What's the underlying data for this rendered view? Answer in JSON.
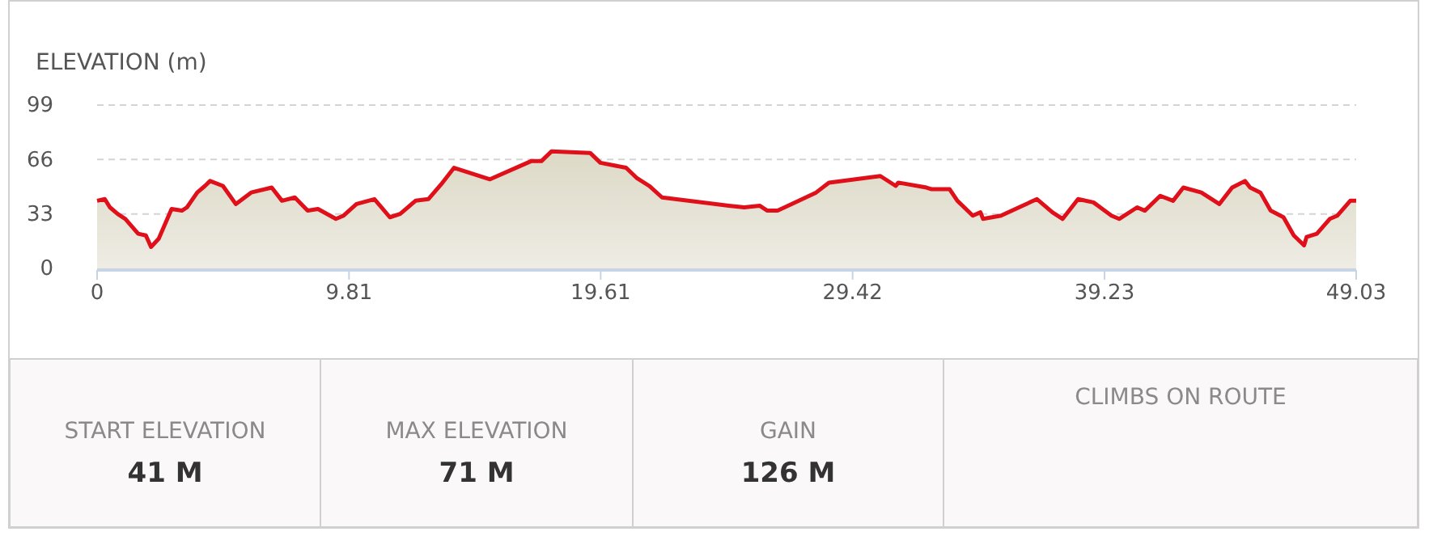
{
  "chart_data": {
    "type": "area",
    "ylabel": "ELEVATION (m)",
    "x": [
      0,
      0.3,
      0.5,
      0.8,
      1.1,
      1.6,
      1.9,
      2.1,
      2.4,
      2.9,
      3.3,
      3.5,
      3.9,
      4.2,
      4.4,
      4.9,
      5.4,
      6.0,
      6.8,
      7.2,
      7.7,
      8.2,
      8.6,
      9.3,
      9.6,
      10.1,
      10.8,
      11.4,
      11.8,
      12.4,
      12.9,
      13.4,
      13.9,
      15.3,
      16.9,
      17.3,
      17.7,
      19.2,
      19.6,
      20.6,
      21.0,
      21.5,
      22.0,
      24.6,
      25.2,
      25.8,
      26.1,
      26.5,
      28.0,
      28.5,
      30.5,
      31.1,
      31.2,
      32.3,
      32.5,
      33.2,
      33.5,
      34.1,
      34.4,
      34.5,
      35.2,
      36.6,
      37.2,
      37.6,
      38.2,
      38.8,
      39.5,
      39.8,
      40.5,
      40.8,
      41.4,
      41.9,
      42.3,
      43.0,
      43.7,
      44.2,
      44.7,
      44.9,
      45.3,
      45.7,
      46.2,
      46.6,
      47.0,
      47.1,
      47.5,
      48.0,
      48.3,
      48.8,
      49.03
    ],
    "series": [
      {
        "color": "#e0101b",
        "values": [
          41,
          42,
          37,
          33,
          30,
          21,
          20,
          13,
          18,
          36,
          35,
          37,
          46,
          50,
          53,
          50,
          39,
          46,
          49,
          41,
          43,
          35,
          36,
          30,
          32,
          39,
          42,
          31,
          33,
          41,
          42,
          51,
          61,
          54,
          65,
          65,
          71,
          70,
          64,
          61,
          55,
          50,
          43,
          38,
          37,
          38,
          35,
          35,
          46,
          52,
          56,
          50,
          52,
          49,
          48,
          48,
          41,
          32,
          34,
          30,
          32,
          42,
          34,
          30,
          42,
          40,
          32,
          30,
          37,
          35,
          44,
          41,
          49,
          46,
          39,
          49,
          53,
          49,
          46,
          35,
          31,
          20,
          14,
          19,
          21,
          30,
          32,
          41,
          41
        ]
      }
    ],
    "xlim": [
      0,
      49.03
    ],
    "xticks": [
      0,
      9.81,
      19.61,
      29.42,
      39.23,
      49.03
    ],
    "ylim": [
      0,
      99
    ],
    "yticks": [
      0,
      33,
      66,
      99
    ],
    "grid": "y",
    "line_style": "solid",
    "marker": "none",
    "annotations": [
      "START ELEVATION",
      "41 M",
      "MAX ELEVATION",
      "71 M",
      "GAIN",
      "126 M",
      "CLIMBS ON ROUTE"
    ]
  }
}
